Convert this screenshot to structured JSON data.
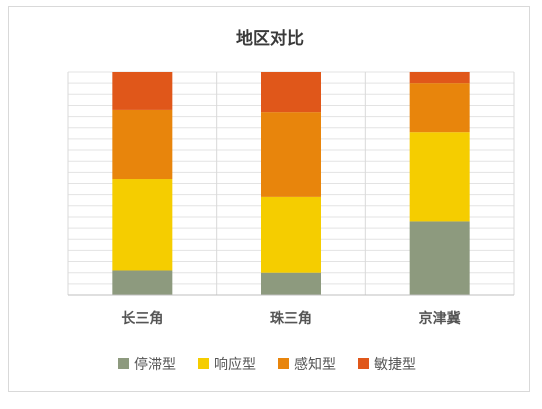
{
  "chart_data": {
    "type": "bar",
    "stacked": true,
    "normalized_percent": true,
    "title": "地区对比",
    "categories": [
      "长三角",
      "珠三角",
      "京津冀"
    ],
    "series": [
      {
        "name": "停滞型",
        "color": "#8d9a7e",
        "values": [
          11,
          10,
          33
        ]
      },
      {
        "name": "响应型",
        "color": "#f5cd00",
        "values": [
          41,
          34,
          40
        ]
      },
      {
        "name": "感知型",
        "color": "#e8850c",
        "values": [
          31,
          38,
          22
        ]
      },
      {
        "name": "敏捷型",
        "color": "#e0571a",
        "values": [
          17,
          18,
          5
        ]
      }
    ],
    "ylim": [
      0,
      100
    ],
    "grid": true,
    "legend_position": "bottom"
  }
}
